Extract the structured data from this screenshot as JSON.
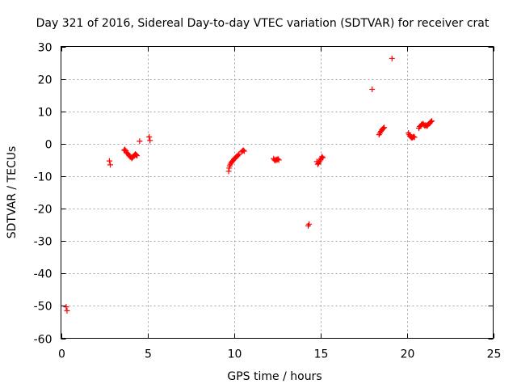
{
  "chart_data": {
    "type": "scatter",
    "title": "Day 321 of 2016, Sidereal Day-to-day VTEC variation (SDTVAR) for receiver crat",
    "xlabel": "GPS time / hours",
    "ylabel": "SDTVAR / TECUs",
    "xlim": [
      0,
      25
    ],
    "ylim": [
      -60,
      30
    ],
    "xticks": [
      0,
      5,
      10,
      15,
      20,
      25
    ],
    "yticks": [
      30,
      20,
      10,
      0,
      -10,
      -20,
      -30,
      -40,
      -50,
      -60
    ],
    "xtick_labels": [
      "0",
      "5",
      "10",
      "15",
      "20",
      "25"
    ],
    "ytick_labels": [
      "30",
      "20",
      "10",
      "0",
      "-10",
      "-20",
      "-30",
      "-40",
      "-50",
      "-60"
    ],
    "grid": true,
    "marker": "+",
    "marker_color": "#ff0000",
    "series": [
      {
        "name": "SDTVAR",
        "x": [
          0.3,
          0.35,
          2.8,
          2.85,
          3.65,
          3.7,
          3.75,
          3.8,
          3.85,
          3.9,
          3.95,
          4.0,
          4.05,
          4.1,
          4.15,
          4.2,
          4.25,
          4.3,
          4.35,
          4.4,
          4.55,
          5.1,
          5.15,
          9.7,
          9.73,
          9.76,
          9.8,
          9.85,
          9.9,
          9.95,
          10.0,
          10.05,
          10.1,
          10.15,
          10.2,
          10.25,
          10.3,
          10.45,
          10.5,
          10.55,
          10.6,
          12.3,
          12.35,
          12.4,
          12.45,
          12.5,
          12.55,
          12.6,
          14.3,
          14.35,
          14.8,
          14.85,
          14.9,
          14.95,
          15.0,
          15.05,
          15.1,
          15.15,
          18.0,
          18.4,
          18.45,
          18.5,
          18.55,
          18.6,
          18.65,
          18.7,
          19.15,
          20.1,
          20.15,
          20.2,
          20.25,
          20.3,
          20.35,
          20.4,
          20.45,
          20.7,
          20.75,
          20.8,
          20.85,
          20.9,
          20.95,
          21.0,
          21.05,
          21.1,
          21.15,
          21.2,
          21.25,
          21.3,
          21.35,
          21.4,
          21.45
        ],
        "y": [
          -50.3,
          -51.5,
          -5.3,
          -6.5,
          -2.0,
          -1.8,
          -2.2,
          -2.8,
          -3.0,
          -3.3,
          -3.7,
          -4.0,
          -4.2,
          -4.5,
          -4.2,
          -3.8,
          -3.5,
          -3.2,
          -3.4,
          -3.7,
          0.8,
          2.1,
          1.0,
          -8.5,
          -7.5,
          -6.8,
          -6.3,
          -5.8,
          -5.5,
          -5.2,
          -4.8,
          -4.5,
          -4.3,
          -4.0,
          -3.8,
          -3.5,
          -3.2,
          -2.5,
          -2.2,
          -2.0,
          -2.3,
          -4.6,
          -5.0,
          -5.2,
          -4.8,
          -5.0,
          -4.7,
          -5.0,
          -25.3,
          -24.8,
          -5.5,
          -6.3,
          -6.0,
          -5.5,
          -5.0,
          -4.5,
          -4.0,
          -4.3,
          16.8,
          2.8,
          3.3,
          3.8,
          4.2,
          4.5,
          4.8,
          5.0,
          26.3,
          3.3,
          2.8,
          2.3,
          2.0,
          1.8,
          2.0,
          2.2,
          2.0,
          4.8,
          5.3,
          5.5,
          5.9,
          6.0,
          6.2,
          5.8,
          5.5,
          5.8,
          5.5,
          5.6,
          6.0,
          6.2,
          6.5,
          6.8,
          7.0
        ]
      }
    ]
  }
}
